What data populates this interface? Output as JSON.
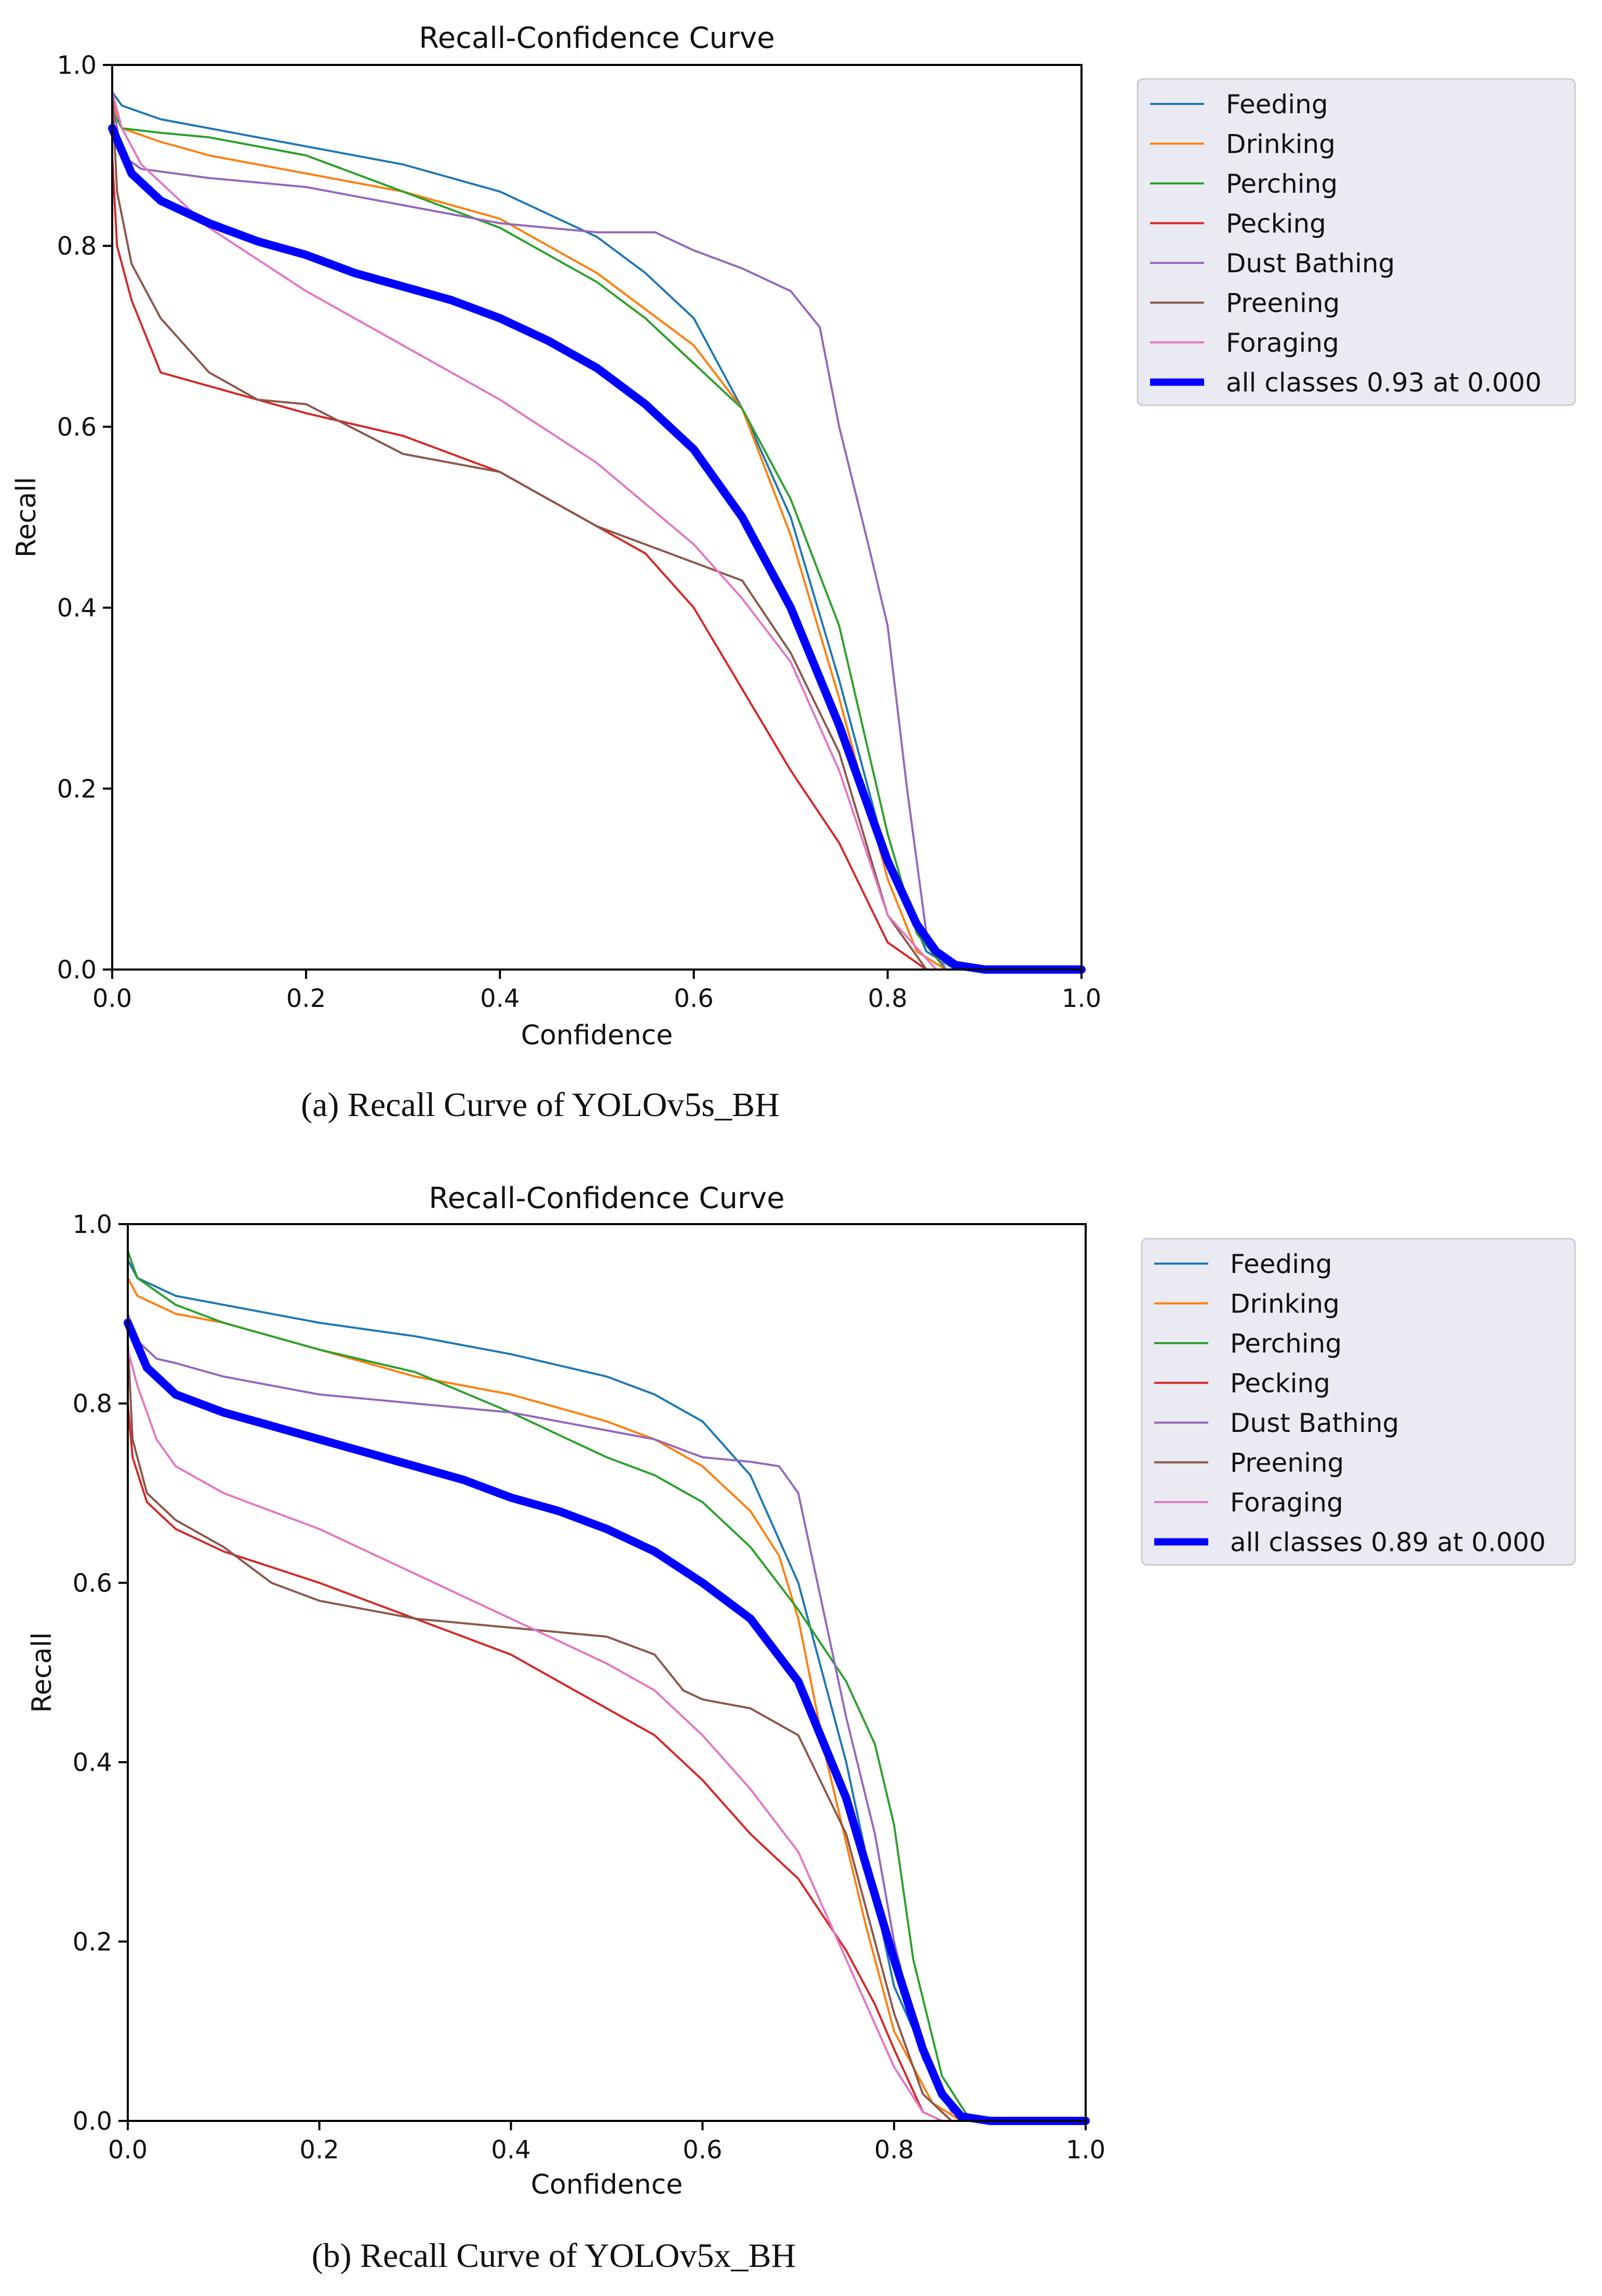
{
  "colors": {
    "Feeding": "#1f77b4",
    "Drinking": "#ff7f0e",
    "Perching": "#2ca02c",
    "Pecking": "#d62728",
    "Dust Bathing": "#9467bd",
    "Preening": "#8c564b",
    "Foraging": "#e377c2",
    "all": "#0000ff",
    "legend_bg": "#eaeaf2",
    "legend_border": "#cccccc"
  },
  "chart_data": [
    {
      "type": "line",
      "title": "Recall-Confidence Curve",
      "xlabel": "Confidence",
      "ylabel": "Recall",
      "xlim": [
        0,
        1
      ],
      "ylim": [
        0,
        1
      ],
      "xticks": [
        "0.0",
        "0.2",
        "0.4",
        "0.6",
        "0.8",
        "1.0"
      ],
      "yticks": [
        "0.0",
        "0.2",
        "0.4",
        "0.6",
        "0.8",
        "1.0"
      ],
      "legend_position": "outside-right",
      "caption": "(a) Recall Curve of YOLOv5s_BH",
      "series": [
        {
          "name": "Feeding",
          "x": [
            0,
            0.01,
            0.05,
            0.1,
            0.2,
            0.3,
            0.4,
            0.5,
            0.55,
            0.6,
            0.65,
            0.7,
            0.75,
            0.8,
            0.84,
            0.87,
            1.0
          ],
          "y": [
            0.97,
            0.955,
            0.94,
            0.93,
            0.91,
            0.89,
            0.86,
            0.81,
            0.77,
            0.72,
            0.62,
            0.5,
            0.32,
            0.12,
            0.02,
            0.0,
            0.0
          ]
        },
        {
          "name": "Drinking",
          "x": [
            0,
            0.01,
            0.05,
            0.1,
            0.2,
            0.3,
            0.4,
            0.5,
            0.55,
            0.6,
            0.65,
            0.7,
            0.75,
            0.8,
            0.83,
            0.86,
            1.0
          ],
          "y": [
            0.96,
            0.93,
            0.915,
            0.9,
            0.88,
            0.86,
            0.83,
            0.77,
            0.73,
            0.69,
            0.62,
            0.48,
            0.3,
            0.1,
            0.02,
            0.0,
            0.0
          ]
        },
        {
          "name": "Perching",
          "x": [
            0,
            0.01,
            0.05,
            0.1,
            0.2,
            0.3,
            0.4,
            0.5,
            0.55,
            0.6,
            0.65,
            0.7,
            0.75,
            0.8,
            0.83,
            0.86,
            1.0
          ],
          "y": [
            0.95,
            0.93,
            0.925,
            0.92,
            0.9,
            0.86,
            0.82,
            0.76,
            0.72,
            0.67,
            0.62,
            0.52,
            0.38,
            0.15,
            0.04,
            0.0,
            0.0
          ]
        },
        {
          "name": "Pecking",
          "x": [
            0,
            0.005,
            0.02,
            0.05,
            0.1,
            0.2,
            0.3,
            0.4,
            0.5,
            0.55,
            0.6,
            0.65,
            0.7,
            0.75,
            0.8,
            0.84,
            1.0
          ],
          "y": [
            0.9,
            0.8,
            0.74,
            0.66,
            0.645,
            0.615,
            0.59,
            0.55,
            0.49,
            0.46,
            0.4,
            0.31,
            0.22,
            0.14,
            0.03,
            0.0,
            0.0
          ]
        },
        {
          "name": "Dust Bathing",
          "x": [
            0,
            0.01,
            0.03,
            0.1,
            0.2,
            0.3,
            0.4,
            0.5,
            0.56,
            0.6,
            0.65,
            0.7,
            0.73,
            0.75,
            0.78,
            0.8,
            0.82,
            0.84,
            0.86,
            1.0
          ],
          "y": [
            0.96,
            0.9,
            0.885,
            0.875,
            0.865,
            0.845,
            0.825,
            0.815,
            0.815,
            0.795,
            0.775,
            0.75,
            0.71,
            0.6,
            0.47,
            0.38,
            0.2,
            0.04,
            0.0,
            0.0
          ]
        },
        {
          "name": "Preening",
          "x": [
            0,
            0.005,
            0.02,
            0.05,
            0.1,
            0.15,
            0.2,
            0.3,
            0.4,
            0.5,
            0.55,
            0.6,
            0.65,
            0.7,
            0.75,
            0.8,
            0.84,
            1.0
          ],
          "y": [
            0.97,
            0.86,
            0.78,
            0.72,
            0.66,
            0.63,
            0.625,
            0.57,
            0.55,
            0.49,
            0.47,
            0.45,
            0.43,
            0.35,
            0.24,
            0.06,
            0.0,
            0.0
          ]
        },
        {
          "name": "Foraging",
          "x": [
            0,
            0.01,
            0.03,
            0.1,
            0.2,
            0.3,
            0.4,
            0.5,
            0.6,
            0.65,
            0.7,
            0.75,
            0.8,
            0.85,
            1.0
          ],
          "y": [
            0.97,
            0.93,
            0.89,
            0.82,
            0.75,
            0.69,
            0.63,
            0.56,
            0.47,
            0.41,
            0.34,
            0.22,
            0.06,
            0.0,
            0.0
          ]
        },
        {
          "name": "all classes 0.93 at 0.000",
          "bold": true,
          "x": [
            0,
            0.02,
            0.05,
            0.1,
            0.15,
            0.2,
            0.25,
            0.3,
            0.35,
            0.4,
            0.45,
            0.5,
            0.55,
            0.6,
            0.65,
            0.7,
            0.75,
            0.8,
            0.83,
            0.85,
            0.87,
            0.9,
            1.0
          ],
          "y": [
            0.93,
            0.88,
            0.85,
            0.825,
            0.805,
            0.79,
            0.77,
            0.755,
            0.74,
            0.72,
            0.695,
            0.665,
            0.625,
            0.575,
            0.5,
            0.4,
            0.27,
            0.12,
            0.05,
            0.02,
            0.005,
            0.0,
            0.0
          ]
        }
      ]
    },
    {
      "type": "line",
      "title": "Recall-Confidence Curve",
      "xlabel": "Confidence",
      "ylabel": "Recall",
      "xlim": [
        0,
        1
      ],
      "ylim": [
        0,
        1
      ],
      "xticks": [
        "0.0",
        "0.2",
        "0.4",
        "0.6",
        "0.8",
        "1.0"
      ],
      "yticks": [
        "0.0",
        "0.2",
        "0.4",
        "0.6",
        "0.8",
        "1.0"
      ],
      "legend_position": "outside-right",
      "caption": "(b) Recall Curve of YOLOv5x_BH",
      "series": [
        {
          "name": "Feeding",
          "x": [
            0,
            0.01,
            0.05,
            0.1,
            0.2,
            0.3,
            0.4,
            0.5,
            0.55,
            0.6,
            0.65,
            0.7,
            0.75,
            0.8,
            0.85,
            0.88,
            1.0
          ],
          "y": [
            0.96,
            0.94,
            0.92,
            0.91,
            0.89,
            0.875,
            0.855,
            0.83,
            0.81,
            0.78,
            0.72,
            0.6,
            0.4,
            0.15,
            0.03,
            0.0,
            0.0
          ]
        },
        {
          "name": "Drinking",
          "x": [
            0,
            0.01,
            0.05,
            0.1,
            0.2,
            0.3,
            0.4,
            0.5,
            0.55,
            0.6,
            0.65,
            0.68,
            0.7,
            0.73,
            0.77,
            0.8,
            0.84,
            0.87,
            1.0
          ],
          "y": [
            0.94,
            0.92,
            0.9,
            0.89,
            0.86,
            0.83,
            0.81,
            0.78,
            0.76,
            0.73,
            0.68,
            0.63,
            0.56,
            0.4,
            0.22,
            0.1,
            0.02,
            0.0,
            0.0
          ]
        },
        {
          "name": "Perching",
          "x": [
            0,
            0.01,
            0.05,
            0.1,
            0.2,
            0.3,
            0.4,
            0.5,
            0.55,
            0.6,
            0.65,
            0.7,
            0.75,
            0.78,
            0.8,
            0.82,
            0.85,
            0.88,
            1.0
          ],
          "y": [
            0.97,
            0.94,
            0.91,
            0.89,
            0.86,
            0.835,
            0.79,
            0.74,
            0.72,
            0.69,
            0.64,
            0.57,
            0.49,
            0.42,
            0.33,
            0.18,
            0.05,
            0.0,
            0.0
          ]
        },
        {
          "name": "Pecking",
          "x": [
            0,
            0.005,
            0.02,
            0.05,
            0.1,
            0.2,
            0.3,
            0.4,
            0.5,
            0.55,
            0.6,
            0.65,
            0.7,
            0.75,
            0.78,
            0.8,
            0.83,
            0.85,
            1.0
          ],
          "y": [
            0.8,
            0.74,
            0.69,
            0.66,
            0.635,
            0.6,
            0.56,
            0.52,
            0.46,
            0.43,
            0.38,
            0.32,
            0.27,
            0.19,
            0.13,
            0.08,
            0.01,
            0.0,
            0.0
          ]
        },
        {
          "name": "Dust Bathing",
          "x": [
            0,
            0.01,
            0.03,
            0.05,
            0.1,
            0.2,
            0.3,
            0.4,
            0.5,
            0.55,
            0.6,
            0.65,
            0.68,
            0.7,
            0.72,
            0.75,
            0.78,
            0.8,
            0.83,
            0.86,
            0.88,
            1.0
          ],
          "y": [
            0.9,
            0.87,
            0.85,
            0.845,
            0.83,
            0.81,
            0.8,
            0.79,
            0.77,
            0.76,
            0.74,
            0.735,
            0.73,
            0.7,
            0.6,
            0.45,
            0.32,
            0.2,
            0.07,
            0.01,
            0.0,
            0.0
          ]
        },
        {
          "name": "Preening",
          "x": [
            0,
            0.005,
            0.02,
            0.05,
            0.1,
            0.15,
            0.2,
            0.3,
            0.4,
            0.5,
            0.55,
            0.58,
            0.6,
            0.65,
            0.7,
            0.75,
            0.8,
            0.83,
            0.86,
            1.0
          ],
          "y": [
            0.87,
            0.76,
            0.7,
            0.67,
            0.64,
            0.6,
            0.58,
            0.56,
            0.55,
            0.54,
            0.52,
            0.48,
            0.47,
            0.46,
            0.43,
            0.32,
            0.12,
            0.03,
            0.0,
            0.0
          ]
        },
        {
          "name": "Foraging",
          "x": [
            0,
            0.01,
            0.03,
            0.05,
            0.1,
            0.2,
            0.3,
            0.4,
            0.5,
            0.55,
            0.6,
            0.65,
            0.7,
            0.75,
            0.8,
            0.83,
            0.85,
            1.0
          ],
          "y": [
            0.86,
            0.82,
            0.76,
            0.73,
            0.7,
            0.66,
            0.61,
            0.56,
            0.51,
            0.48,
            0.43,
            0.37,
            0.3,
            0.18,
            0.06,
            0.01,
            0.0,
            0.0
          ]
        },
        {
          "name": "all classes 0.89 at 0.000",
          "bold": true,
          "x": [
            0,
            0.02,
            0.05,
            0.1,
            0.15,
            0.2,
            0.25,
            0.3,
            0.35,
            0.4,
            0.45,
            0.5,
            0.55,
            0.6,
            0.65,
            0.7,
            0.75,
            0.8,
            0.83,
            0.85,
            0.87,
            0.9,
            1.0
          ],
          "y": [
            0.89,
            0.84,
            0.81,
            0.79,
            0.775,
            0.76,
            0.745,
            0.73,
            0.715,
            0.695,
            0.68,
            0.66,
            0.635,
            0.6,
            0.56,
            0.49,
            0.36,
            0.18,
            0.08,
            0.03,
            0.005,
            0.0,
            0.0
          ]
        }
      ]
    }
  ]
}
